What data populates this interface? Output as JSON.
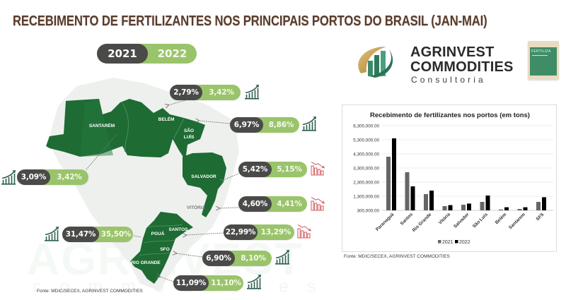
{
  "header": {
    "title": "RECEBIMENTO DE FERTILIZANTES NOS PRINCIPAIS PORTOS DO BRASIL (JAN-MAI)"
  },
  "year_toggle": {
    "year_a": "2021",
    "year_b": "2022"
  },
  "brand": {
    "name_line1": "AGRINVEST",
    "name_line2": "COMMODITIES",
    "tagline": "Consultoria",
    "bag_label": "FERTILIZA"
  },
  "watermark": {
    "big": "AGRINVEST",
    "sub": "commodities"
  },
  "colors": {
    "title": "#5a3b2b",
    "pill_dark": "#4a4a49",
    "pill_light": "#9ac46b",
    "map_green": "#1e6b34",
    "trend_up": "#2f5f52",
    "trend_down": "#d4686c",
    "bar_2021": "#666666",
    "bar_2022": "#000000"
  },
  "map": {
    "labels": {
      "santarem": "SANTARÉM",
      "belem": "BELÉM",
      "sao_luis_1": "SÃO",
      "sao_luis_2": "LUÍS",
      "salvador": "SALVADOR",
      "vitoria": "VITÓRIA",
      "pgua": "PGUÁ",
      "santos": "SANTOS",
      "sfo": "SFO",
      "rio_grande": "RIO GRANDE"
    },
    "ports": [
      {
        "port": "Belém",
        "share_2021": "2,79%",
        "share_2022": "3,42%",
        "trend": "up"
      },
      {
        "port": "São Luís",
        "share_2021": "6,97%",
        "share_2022": "8,86%",
        "trend": "up"
      },
      {
        "port": "Santarém",
        "share_2021": "3,09%",
        "share_2022": "3,42%",
        "trend": "up"
      },
      {
        "port": "Salvador",
        "share_2021": "5,42%",
        "share_2022": "5,15%",
        "trend": "down"
      },
      {
        "port": "Vitória",
        "share_2021": "4,60%",
        "share_2022": "4,41%",
        "trend": "down"
      },
      {
        "port": "Paranaguá",
        "share_2021": "31,47%",
        "share_2022": "35,50%",
        "trend": "up"
      },
      {
        "port": "Santos",
        "share_2021": "22,99%",
        "share_2022": "13,29%",
        "trend": "down"
      },
      {
        "port": "SFO",
        "share_2021": "6,90%",
        "share_2022": "8,10%",
        "trend": "up"
      },
      {
        "port": "Rio Grande",
        "share_2021": "11,09%",
        "share_2022": "11,10%",
        "trend": "up"
      }
    ]
  },
  "footer": {
    "source_left": "Fonte: MDIC/SECEX, AGRINVEST COMMODITIES",
    "source_right": "Fonte: MDIC/SECEX, AGRINVEST COMMODITIES"
  },
  "chart_data": {
    "type": "bar",
    "title": "Recebimento de fertilizantes nos portos (em tons)",
    "xlabel": "",
    "ylabel": "",
    "categories": [
      "Paranaguá",
      "Santos",
      "Rio Grande",
      "Vitória",
      "Salvador",
      "São Luís",
      "Belém",
      "Santarem",
      "SFS"
    ],
    "series": [
      {
        "name": "2021",
        "values": [
          4100000,
          3000000,
          1450000,
          600000,
          700000,
          900000,
          360000,
          400000,
          900000
        ]
      },
      {
        "name": "2022",
        "values": [
          5400000,
          2000000,
          1700000,
          670000,
          780000,
          1350000,
          520000,
          520000,
          1230000
        ]
      }
    ],
    "ylim": [
      300000,
      6300000
    ],
    "yticks": [
      300000,
      1300000,
      2300000,
      3300000,
      4300000,
      5300000,
      6300000
    ],
    "ytick_labels": [
      "300,000.00",
      "1,300,000.00",
      "2,300,000.00",
      "3,300,000.00",
      "4,300,000.00",
      "5,300,000.00",
      "6,300,000.00"
    ],
    "grid": true,
    "legend_position": "bottom"
  }
}
